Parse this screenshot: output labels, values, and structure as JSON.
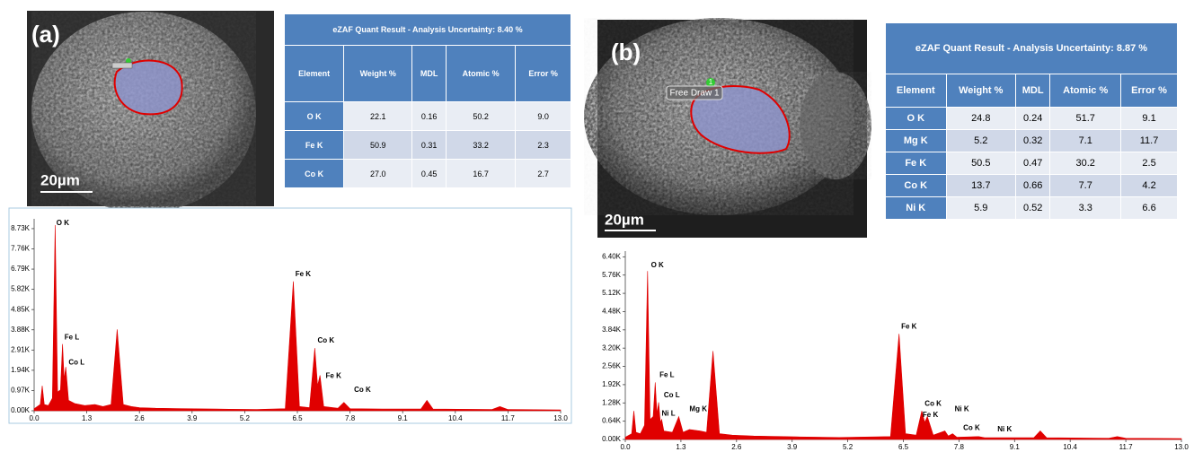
{
  "chart_data": [
    {
      "type": "area",
      "color": "#e00000",
      "x": [
        0.0,
        0.15,
        0.2,
        0.25,
        0.35,
        0.45,
        0.52,
        0.58,
        0.65,
        0.7,
        0.74,
        0.78,
        0.85,
        1.0,
        1.25,
        1.5,
        1.7,
        1.9,
        2.05,
        2.2,
        2.4,
        2.6,
        3.0,
        3.7,
        4.5,
        5.5,
        6.2,
        6.4,
        6.55,
        6.8,
        6.93,
        7.0,
        7.06,
        7.15,
        7.5,
        7.65,
        7.8,
        8.6,
        9.55,
        9.7,
        9.85,
        11.3,
        11.5,
        11.7,
        13.0
      ],
      "values": [
        100,
        300,
        1200,
        300,
        250,
        600,
        8900,
        900,
        1000,
        3200,
        1500,
        2100,
        500,
        350,
        250,
        300,
        200,
        300,
        3900,
        300,
        200,
        150,
        120,
        100,
        80,
        60,
        100,
        6200,
        200,
        150,
        3000,
        1200,
        1700,
        200,
        120,
        400,
        100,
        80,
        80,
        500,
        80,
        60,
        200,
        60,
        40
      ],
      "xlim": [
        0,
        13.0
      ],
      "xticks": [
        {
          "value": 0,
          "label": "0.0"
        },
        1.3,
        2.6,
        3.9,
        5.2,
        6.5,
        7.8,
        9.1,
        10.4,
        11.7,
        {
          "value": 13,
          "label": "13.0"
        }
      ],
      "ylim": [
        0,
        9200
      ],
      "yticks": [
        {
          "value": 0,
          "label": "0.00K"
        },
        {
          "value": 970,
          "label": "0.97K"
        },
        {
          "value": 1940,
          "label": "1.94K"
        },
        {
          "value": 2910,
          "label": "2.91K"
        },
        {
          "value": 3880,
          "label": "3.88K"
        },
        {
          "value": 4850,
          "label": "4.85K"
        },
        {
          "value": 5820,
          "label": "5.82K"
        },
        {
          "value": 6790,
          "label": "6.79K"
        },
        {
          "value": 7760,
          "label": "7.76K"
        },
        {
          "value": 8730,
          "label": "8.73K"
        }
      ],
      "annotations": [
        {
          "text": "O K",
          "x": 0.55,
          "y": 9000
        },
        {
          "text": "Fe L",
          "x": 0.75,
          "y": 3500
        },
        {
          "text": "Co L",
          "x": 0.85,
          "y": 2300
        },
        {
          "text": "Fe K",
          "x": 6.45,
          "y": 6550
        },
        {
          "text": "Co K",
          "x": 7.0,
          "y": 3350
        },
        {
          "text": "Fe K",
          "x": 7.2,
          "y": 1650
        },
        {
          "text": "Co K",
          "x": 7.9,
          "y": 1000
        }
      ]
    },
    {
      "type": "area",
      "color": "#e00000",
      "x": [
        0.0,
        0.15,
        0.2,
        0.25,
        0.35,
        0.45,
        0.52,
        0.58,
        0.65,
        0.7,
        0.74,
        0.78,
        0.82,
        0.85,
        0.9,
        1.1,
        1.25,
        1.35,
        1.5,
        1.75,
        1.9,
        2.05,
        2.2,
        2.5,
        3.0,
        4.0,
        5.0,
        6.2,
        6.4,
        6.55,
        6.8,
        6.93,
        7.0,
        7.06,
        7.2,
        7.47,
        7.55,
        7.65,
        7.75,
        8.26,
        8.4,
        9.55,
        9.7,
        9.85,
        11.3,
        11.5,
        11.7,
        13.0
      ],
      "values": [
        80,
        200,
        1000,
        250,
        200,
        500,
        5900,
        700,
        800,
        2000,
        900,
        1300,
        600,
        700,
        300,
        250,
        800,
        250,
        350,
        300,
        250,
        3100,
        200,
        150,
        120,
        90,
        70,
        100,
        3700,
        200,
        150,
        1000,
        600,
        800,
        150,
        300,
        120,
        200,
        80,
        100,
        60,
        60,
        300,
        60,
        40,
        100,
        40,
        30
      ],
      "xlim": [
        0,
        13.0
      ],
      "xticks": [
        {
          "value": 0,
          "label": "0.0"
        },
        1.3,
        2.6,
        3.9,
        5.2,
        6.5,
        7.8,
        9.1,
        10.4,
        11.7,
        {
          "value": 13,
          "label": "13.0"
        }
      ],
      "ylim": [
        0,
        6600
      ],
      "yticks": [
        {
          "value": 0,
          "label": "0.00K"
        },
        {
          "value": 640,
          "label": "0.64K"
        },
        {
          "value": 1280,
          "label": "1.28K"
        },
        {
          "value": 1920,
          "label": "1.92K"
        },
        {
          "value": 2560,
          "label": "2.56K"
        },
        {
          "value": 3200,
          "label": "3.20K"
        },
        {
          "value": 3840,
          "label": "3.84K"
        },
        {
          "value": 4480,
          "label": "4.48K"
        },
        {
          "value": 5120,
          "label": "5.12K"
        },
        {
          "value": 5760,
          "label": "5.76K"
        },
        {
          "value": 6400,
          "label": "6.40K"
        }
      ],
      "annotations": [
        {
          "text": "O K",
          "x": 0.6,
          "y": 6100
        },
        {
          "text": "Fe L",
          "x": 0.8,
          "y": 2250
        },
        {
          "text": "Co L",
          "x": 0.9,
          "y": 1550
        },
        {
          "text": "Ni L",
          "x": 0.85,
          "y": 900
        },
        {
          "text": "Mg K",
          "x": 1.5,
          "y": 1050
        },
        {
          "text": "Fe K",
          "x": 6.45,
          "y": 3950
        },
        {
          "text": "Co K",
          "x": 7.0,
          "y": 1250
        },
        {
          "text": "Fe K",
          "x": 6.95,
          "y": 850
        },
        {
          "text": "Ni K",
          "x": 7.7,
          "y": 1050
        },
        {
          "text": "Co K",
          "x": 7.9,
          "y": 400
        },
        {
          "text": "Ni K",
          "x": 8.7,
          "y": 350
        }
      ]
    }
  ],
  "panel_a": {
    "label": "(a)",
    "scale_bar": "20µm",
    "table": {
      "title": "eZAF Quant Result - Analysis Uncertainty: 8.40 %",
      "header": [
        "Element",
        "Weight %",
        "MDL",
        "Atomic %",
        "Error %"
      ],
      "rows": [
        [
          "O K",
          "22.1",
          "0.16",
          "50.2",
          "9.0"
        ],
        [
          "Fe K",
          "50.9",
          "0.31",
          "33.2",
          "2.3"
        ],
        [
          "Co K",
          "27.0",
          "0.45",
          "16.7",
          "2.7"
        ]
      ]
    }
  },
  "panel_b": {
    "label": "(b)",
    "scale_bar": "20µm",
    "roi_number": "1",
    "roi_label": "Free Draw 1",
    "table": {
      "title": "eZAF Quant Result - Analysis Uncertainty: 8.87 %",
      "header": [
        "Element",
        "Weight %",
        "MDL",
        "Atomic %",
        "Error %"
      ],
      "rows": [
        [
          "O K",
          "24.8",
          "0.24",
          "51.7",
          "9.1"
        ],
        [
          "Mg K",
          "5.2",
          "0.32",
          "7.1",
          "11.7"
        ],
        [
          "Fe K",
          "50.5",
          "0.47",
          "30.2",
          "2.5"
        ],
        [
          "Co K",
          "13.7",
          "0.66",
          "7.7",
          "4.2"
        ],
        [
          "Ni K",
          "5.9",
          "0.52",
          "3.3",
          "6.6"
        ]
      ]
    }
  }
}
